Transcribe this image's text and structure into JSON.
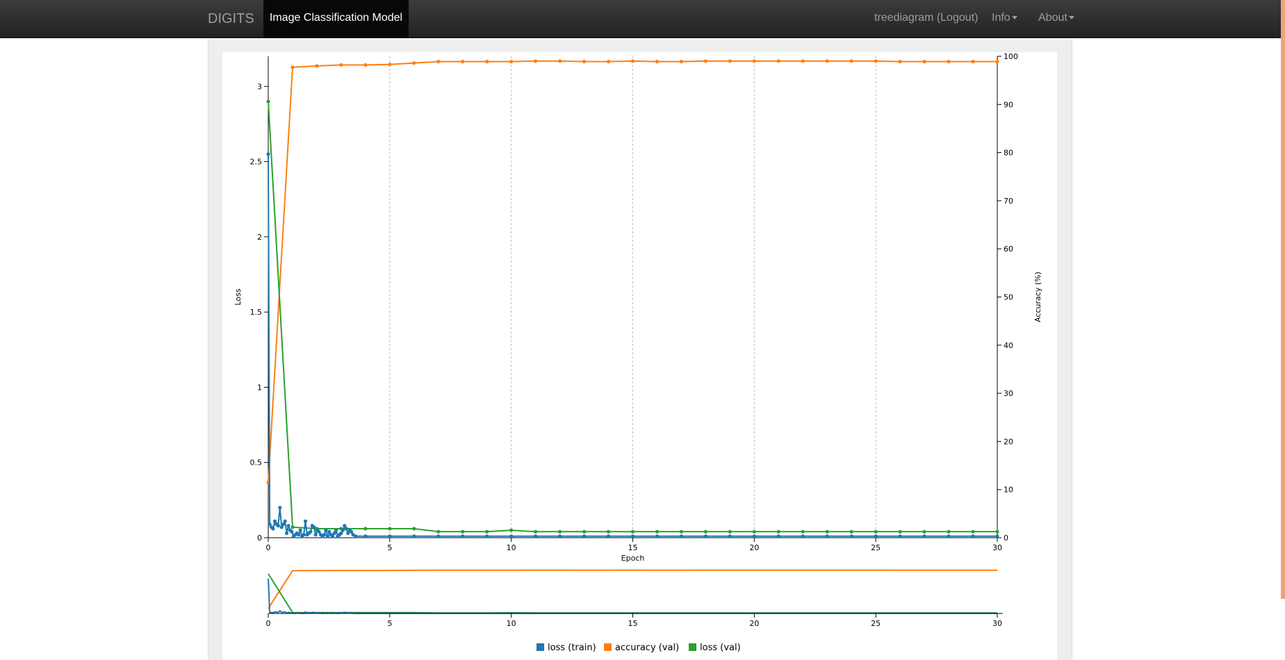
{
  "navbar": {
    "brand": "DIGITS",
    "active_tab": "Image Classification Model",
    "user_link": "treediagram (Logout)",
    "info_menu": "Info",
    "about_menu": "About"
  },
  "chart_data": {
    "type": "line",
    "xlabel": "Epoch",
    "ylabel": "Loss",
    "y2label": "Accuracy (%)",
    "xlim": [
      0,
      30
    ],
    "ylim": [
      0,
      3.2
    ],
    "y2lim": [
      0,
      100
    ],
    "x_ticks": [
      0,
      5,
      10,
      15,
      20,
      25,
      30
    ],
    "y_ticks": [
      0,
      0.5,
      1,
      1.5,
      2,
      2.5,
      3
    ],
    "y2_ticks": [
      0,
      10,
      20,
      30,
      40,
      50,
      60,
      70,
      80,
      90,
      100
    ],
    "vertical_grid": true,
    "legend_position": "bottom",
    "colors": {
      "loss (train)": "#1f77b4",
      "accuracy (val)": "#ff7f0e",
      "loss (val)": "#2ca02c"
    },
    "series": [
      {
        "name": "loss (train)",
        "axis": "left",
        "x": [
          0,
          0.06,
          0.13,
          0.2,
          0.27,
          0.34,
          0.41,
          0.48,
          0.55,
          0.62,
          0.69,
          0.76,
          0.83,
          0.9,
          0.97,
          1.04,
          1.11,
          1.18,
          1.25,
          1.32,
          1.39,
          1.46,
          1.53,
          1.6,
          1.67,
          1.74,
          1.81,
          1.88,
          1.95,
          2.02,
          2.09,
          2.16,
          2.23,
          2.3,
          2.37,
          2.44,
          2.51,
          2.58,
          2.65,
          2.72,
          2.79,
          2.86,
          2.93,
          3.0,
          3.07,
          3.14,
          3.21,
          3.28,
          3.35,
          3.42,
          3.49,
          3.6,
          4,
          5,
          6,
          7,
          8,
          9,
          10,
          11,
          12,
          13,
          14,
          15,
          16,
          17,
          18,
          19,
          20,
          21,
          22,
          23,
          24,
          25,
          26,
          27,
          28,
          29,
          30
        ],
        "values": [
          2.55,
          0.09,
          0.07,
          0.06,
          0.11,
          0.09,
          0.08,
          0.2,
          0.07,
          0.09,
          0.11,
          0.03,
          0.08,
          0.05,
          0.04,
          0.01,
          0.02,
          0.03,
          0.02,
          0.05,
          0.01,
          0.02,
          0.11,
          0.02,
          0.03,
          0.04,
          0.08,
          0.07,
          0.02,
          0.05,
          0.04,
          0.02,
          0.01,
          0.02,
          0.05,
          0.01,
          0.04,
          0.02,
          0.01,
          0.03,
          0.05,
          0.01,
          0.02,
          0.03,
          0.05,
          0.08,
          0.06,
          0.03,
          0.05,
          0.04,
          0.02,
          0.01,
          0.01,
          0.01,
          0.01,
          0.01,
          0.01,
          0.01,
          0.01,
          0.01,
          0.01,
          0.01,
          0.01,
          0.01,
          0.01,
          0.01,
          0.01,
          0.01,
          0.01,
          0.01,
          0.01,
          0.01,
          0.01,
          0.01,
          0.01,
          0.01,
          0.01,
          0.01,
          0.01
        ]
      },
      {
        "name": "accuracy (val)",
        "axis": "right",
        "x": [
          0,
          1,
          2,
          3,
          4,
          5,
          6,
          7,
          8,
          9,
          10,
          11,
          12,
          13,
          14,
          15,
          16,
          17,
          18,
          19,
          20,
          21,
          22,
          23,
          24,
          25,
          26,
          27,
          28,
          29,
          30
        ],
        "values": [
          11.5,
          97.7,
          98.0,
          98.2,
          98.2,
          98.3,
          98.6,
          98.9,
          98.9,
          98.9,
          98.9,
          99.0,
          99.0,
          98.9,
          98.9,
          99.0,
          98.9,
          98.9,
          99.0,
          99.0,
          99.0,
          99.0,
          99.0,
          99.0,
          99.0,
          99.0,
          98.9,
          98.9,
          98.9,
          98.9,
          98.9
        ]
      },
      {
        "name": "loss (val)",
        "axis": "left",
        "x": [
          0,
          1,
          2,
          3,
          4,
          5,
          6,
          7,
          8,
          9,
          10,
          11,
          12,
          13,
          14,
          15,
          16,
          17,
          18,
          19,
          20,
          21,
          22,
          23,
          24,
          25,
          26,
          27,
          28,
          29,
          30
        ],
        "values": [
          2.9,
          0.07,
          0.06,
          0.06,
          0.06,
          0.06,
          0.06,
          0.04,
          0.04,
          0.04,
          0.05,
          0.04,
          0.04,
          0.04,
          0.04,
          0.04,
          0.04,
          0.04,
          0.04,
          0.04,
          0.04,
          0.04,
          0.04,
          0.04,
          0.04,
          0.04,
          0.04,
          0.04,
          0.04,
          0.04,
          0.04
        ]
      }
    ]
  }
}
